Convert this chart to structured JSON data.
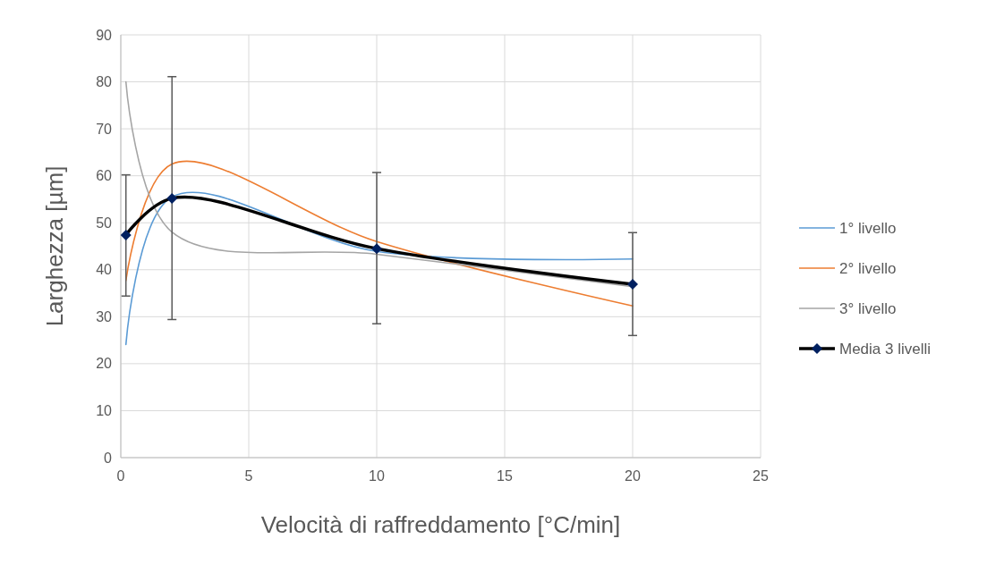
{
  "chart_data": {
    "type": "line",
    "xlabel": "Velocità di raffreddamento [°C/min]",
    "ylabel": "Larghezza [µm]",
    "xlim": [
      0,
      25
    ],
    "xticks": [
      0,
      5,
      10,
      15,
      20,
      25
    ],
    "ylim": [
      0,
      90
    ],
    "yticks": [
      0,
      10,
      20,
      30,
      40,
      50,
      60,
      70,
      80,
      90
    ],
    "grid": true,
    "legend": "right",
    "line_style": "solid",
    "series": [
      {
        "name": "1° livello",
        "color": "#5b9bd5",
        "x": [
          0.2,
          2,
          10,
          20
        ],
        "values": [
          24.1,
          55.5,
          43.9,
          42.3
        ],
        "marker": "none"
      },
      {
        "name": "2° livello",
        "color": "#ed7d31",
        "x": [
          0.2,
          2,
          10,
          20
        ],
        "values": [
          37.7,
          62.5,
          46,
          32.3
        ],
        "marker": "none"
      },
      {
        "name": "3° livello",
        "color": "#a5a5a5",
        "x": [
          0.2,
          2,
          10,
          20
        ],
        "values": [
          80,
          48,
          43.3,
          36.4
        ],
        "marker": "none"
      },
      {
        "name": "Media 3 livelli",
        "color": "#000000",
        "x": [
          0.2,
          2,
          10,
          20
        ],
        "values": [
          47.4,
          55.2,
          44.5,
          36.9
        ],
        "marker": "diamond",
        "errors": [
          [
            34.4,
            60.2
          ],
          [
            29.4,
            81.1
          ],
          [
            28.5,
            60.7
          ],
          [
            26,
            47.9
          ]
        ]
      }
    ]
  }
}
